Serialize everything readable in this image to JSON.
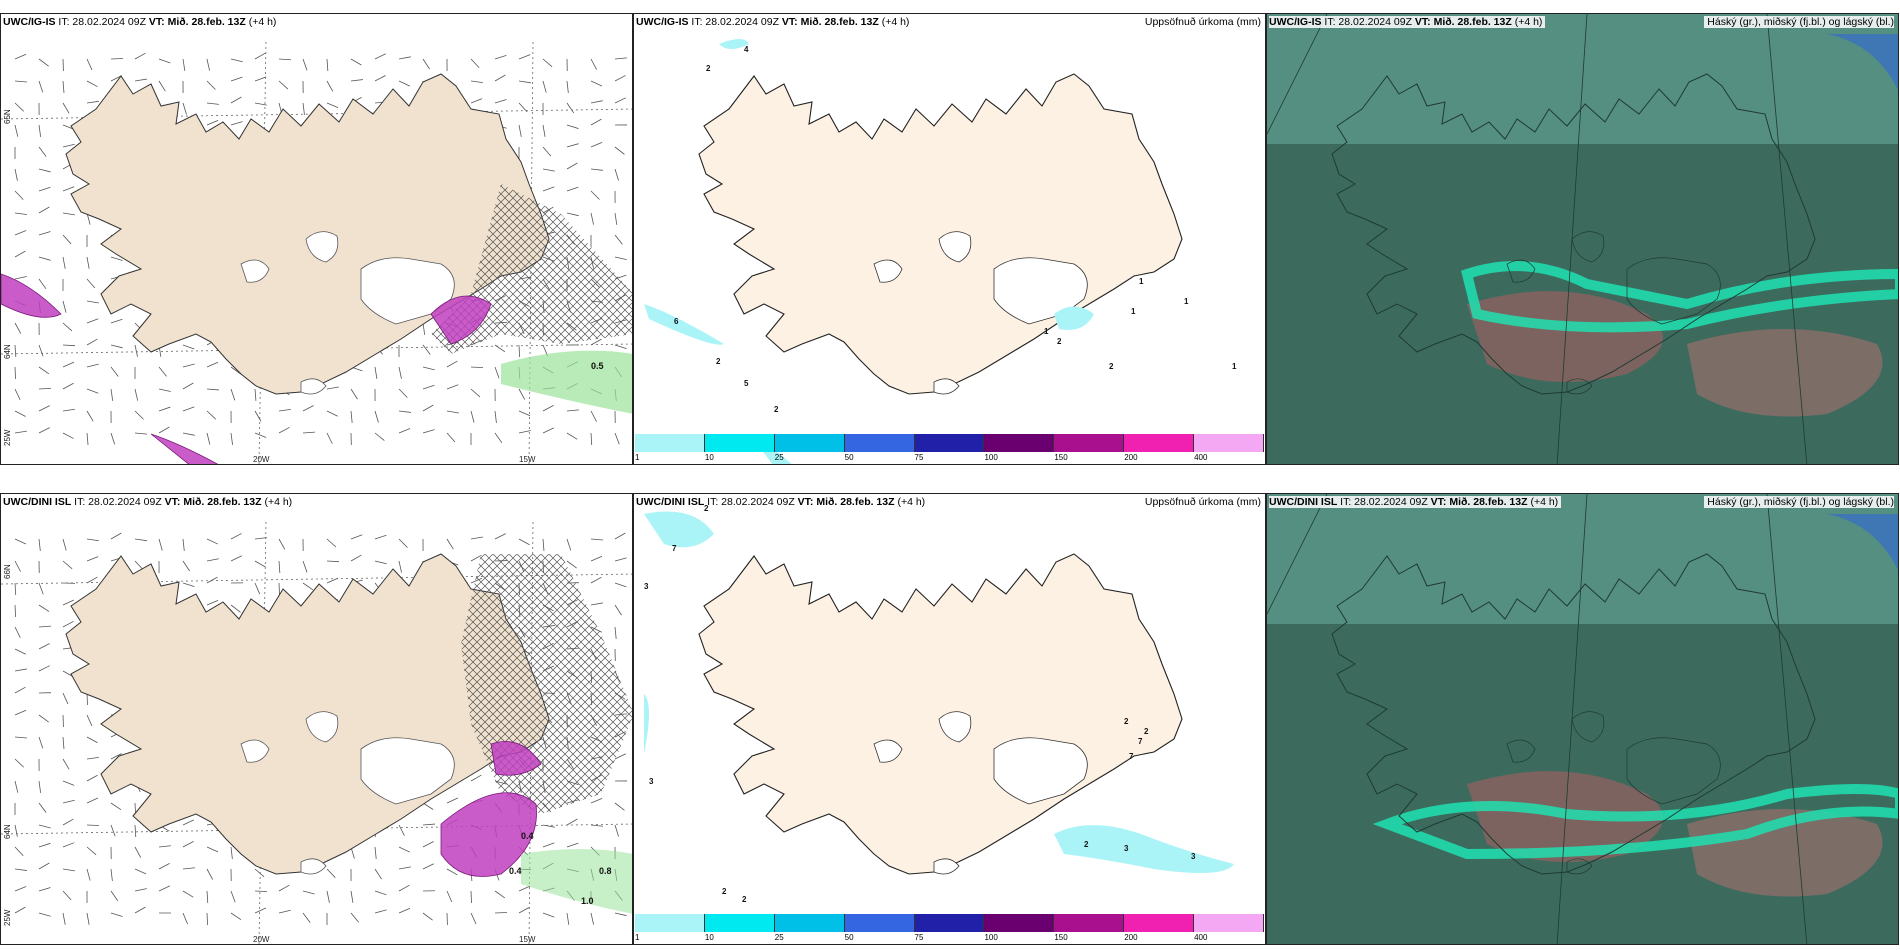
{
  "rows": [
    {
      "model": "UWC/IG-IS",
      "it": "IT: 28.02.2024 09Z",
      "vt_label": "VT:",
      "vt_value": "Mið. 28.feb. 13Z",
      "lead": "(+4 h)",
      "left_axes": {
        "lat_top": "65N",
        "lat_mid": "64N",
        "lon_left": "25W",
        "lon_20": "20W",
        "lon_15": "15W"
      },
      "left_values": [
        "0.5"
      ],
      "mid_values": [
        "2",
        "4",
        "6",
        "2",
        "5",
        "2",
        "1",
        "1",
        "1",
        "2",
        "2",
        "1",
        "1"
      ]
    },
    {
      "model": "UWC/DINI ISL",
      "it": "IT: 28.02.2024 09Z",
      "vt_label": "VT:",
      "vt_value": "Mið. 28.feb. 13Z",
      "lead": "(+4 h)",
      "left_axes": {
        "lat_top": "66N",
        "lat_mid": "64N",
        "lon_left": "25W",
        "lon_20": "20W",
        "lon_15": "15W"
      },
      "left_values": [
        "0.4",
        "0.8",
        "1.0",
        "0.4"
      ],
      "mid_values": [
        "2",
        "7",
        "3",
        "3",
        "2",
        "2",
        "2",
        "2",
        "7",
        "7",
        "2",
        "3",
        "3"
      ]
    }
  ],
  "precip_title": "Uppsöfnuð úrkoma (mm)",
  "cloud_title": "Háský (gr.), miðský (fj.bl.) og lágský (bl.)",
  "colorbar": {
    "labels": [
      "1",
      "10",
      "25",
      "50",
      "75",
      "100",
      "150",
      "200",
      "400"
    ],
    "colors": [
      "#aaf4f8",
      "#00e8f0",
      "#00c0e8",
      "#3366e0",
      "#2020a8",
      "#6a0070",
      "#a8108e",
      "#f020b0",
      "#f4a8f4"
    ]
  },
  "colors": {
    "land": "#f0e2cf",
    "land_precip": "#fdf1e3",
    "cloud_base": "#3c6b5e",
    "purple": "#c040c0",
    "green": "#9be39b"
  }
}
